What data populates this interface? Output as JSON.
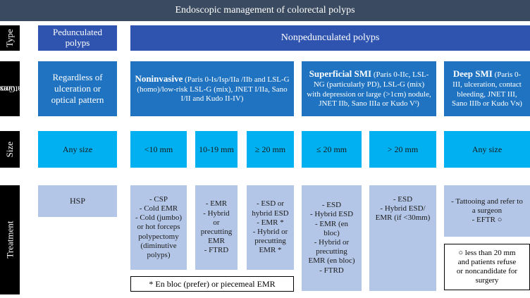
{
  "title": "Endoscopic management of colorectal polyps",
  "row_labels": {
    "type": "Type",
    "gross_line1": "Gross",
    "gross_line2": "features",
    "size": "Size",
    "treatment": "Treatment"
  },
  "type_row": {
    "pedunculated_line1": "Pedunculated",
    "pedunculated_line2": "polyps",
    "nonpedunculated": "Nonpedunculated polyps"
  },
  "gross_row": {
    "pedunculated": "Regardless of ulceration or optical pattern",
    "noninvasive_title": "Noninvasive",
    "noninvasive_text": " (Paris 0-Is/Isp/IIa /IIb and LSL-G (homo)/low-risk LSL-G (mix), JNET I/IIa, Sano I/II and Kudo II-IV)",
    "superficial_title": "Superficial SMI",
    "superficial_text": " (Paris 0-IIc, LSL-NG (particularly PD), LSL-G (mix) with depression or large (>1cm) nodule, JNET IIb, Sano IIIa or Kudo Vᴵ)",
    "deep_title": "Deep SMI",
    "deep_text": " (Paris 0-III, ulceration, contact bleeding, JNET III, Sano IIIb or Kudo Vɴ)"
  },
  "size_row": [
    "Any size",
    "<10 mm",
    "10-19 mm",
    "≥ 20 mm",
    "≤ 20 mm",
    "> 20 mm",
    "Any size"
  ],
  "treatment_row": {
    "hsp": "HSP",
    "lt10": [
      "- CSP",
      "- Cold EMR",
      "- Cold (jumbo)",
      "or hot forceps",
      "polypectomy",
      "(diminutive",
      "polyps)"
    ],
    "s10_19": [
      "- EMR",
      "- Hybrid",
      "or",
      "precutting",
      "EMR",
      "- FTRD"
    ],
    "ge20": [
      "- ESD or",
      "hybrid ESD",
      "- EMR *",
      "- Hybrid or",
      "precutting",
      "EMR *"
    ],
    "le20": [
      "- ESD",
      "- Hybrid ESD",
      "- EMR (en",
      "bloc)",
      "- Hybrid or",
      "precutting",
      "EMR (en bloc)",
      "- FTRD"
    ],
    "gt20": [
      "- ESD",
      "- Hybrid ESD/",
      "EMR (if <30mm)"
    ],
    "deep": [
      "- Tattooing and refer to",
      "a surgeon",
      "- EFTR ○"
    ]
  },
  "notes": {
    "en_bloc": "* En bloc (prefer) or piecemeal EMR",
    "deep_note": [
      "○ less than 20 mm",
      "and patients refuse",
      "or noncandidate for",
      "surgery"
    ]
  },
  "colors": {
    "title_bar": "#3a4a60",
    "row_label": "#000000",
    "type_header": "#2f54b0",
    "gross_features": "#1f73c1",
    "size": "#00b0f0",
    "treatment": "#b4c6e7"
  }
}
